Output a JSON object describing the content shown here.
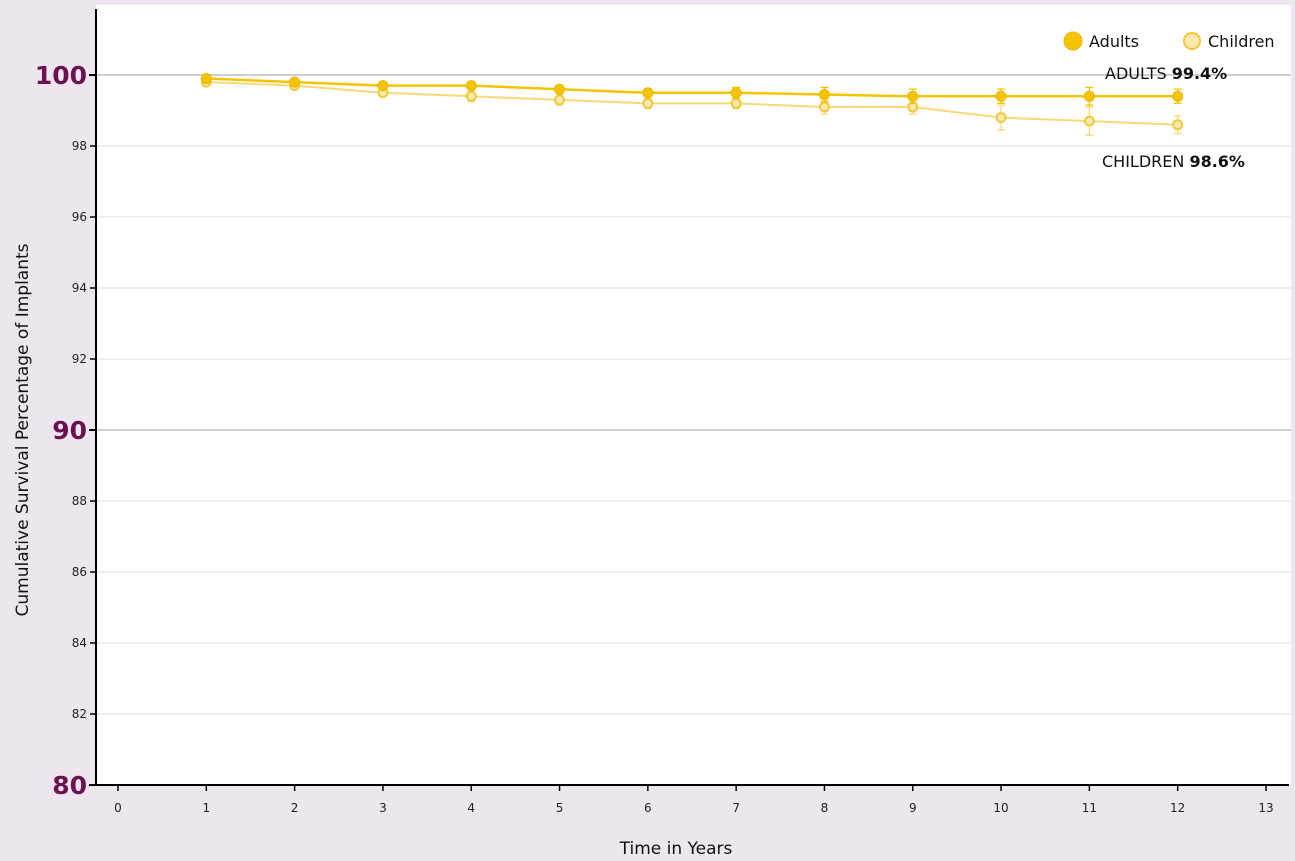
{
  "chart_data": {
    "type": "line",
    "ylabel": "Cumulative Survival Percentage of Implants",
    "xlabel": "Time in Years",
    "xlim": [
      0,
      13
    ],
    "ylim": [
      80,
      102
    ],
    "x_ticks": [
      0,
      1,
      2,
      3,
      4,
      5,
      6,
      7,
      8,
      9,
      10,
      11,
      12,
      13
    ],
    "y_ticks_major": [
      {
        "value": 100,
        "label": "100"
      },
      {
        "value": 90,
        "label": "90"
      },
      {
        "value": 80,
        "label": "80"
      }
    ],
    "y_ticks_minor": [
      {
        "value": 98,
        "label": "98"
      },
      {
        "value": 96,
        "label": "96"
      },
      {
        "value": 94,
        "label": "94"
      },
      {
        "value": 92,
        "label": "92"
      },
      {
        "value": 88,
        "label": "88"
      },
      {
        "value": 86,
        "label": "86"
      },
      {
        "value": 84,
        "label": "84"
      },
      {
        "value": 82,
        "label": "82"
      }
    ],
    "grid": true,
    "legend_position": "top-right",
    "series": [
      {
        "name": "Adults",
        "color": "#f5c400",
        "marker": "filled-circle",
        "x": [
          1,
          2,
          3,
          4,
          5,
          6,
          7,
          8,
          9,
          10,
          11,
          12
        ],
        "values": [
          99.9,
          99.8,
          99.7,
          99.7,
          99.6,
          99.5,
          99.5,
          99.45,
          99.4,
          99.4,
          99.4,
          99.4
        ],
        "error": [
          0.05,
          0.05,
          0.05,
          0.05,
          0.05,
          0.1,
          0.15,
          0.2,
          0.2,
          0.2,
          0.25,
          0.2
        ]
      },
      {
        "name": "Children",
        "color": "#f8d978",
        "marker": "open-circle",
        "x": [
          1,
          2,
          3,
          4,
          5,
          6,
          7,
          8,
          9,
          10,
          11,
          12
        ],
        "values": [
          99.8,
          99.7,
          99.5,
          99.4,
          99.3,
          99.2,
          99.2,
          99.1,
          99.1,
          98.8,
          98.7,
          98.6
        ],
        "error": [
          0.05,
          0.05,
          0.05,
          0.15,
          0.15,
          0.15,
          0.15,
          0.2,
          0.2,
          0.35,
          0.4,
          0.25
        ]
      }
    ],
    "annotations": [
      {
        "prefix": "ADULTS",
        "value": "99.4%"
      },
      {
        "prefix": "CHILDREN",
        "value": "98.6%"
      }
    ],
    "colors": {
      "background": "#eee6ef",
      "plot_background": "#ffffff",
      "major_tick_label": "#6b1050",
      "axis": "#000000",
      "grid": "#dddddd"
    }
  }
}
